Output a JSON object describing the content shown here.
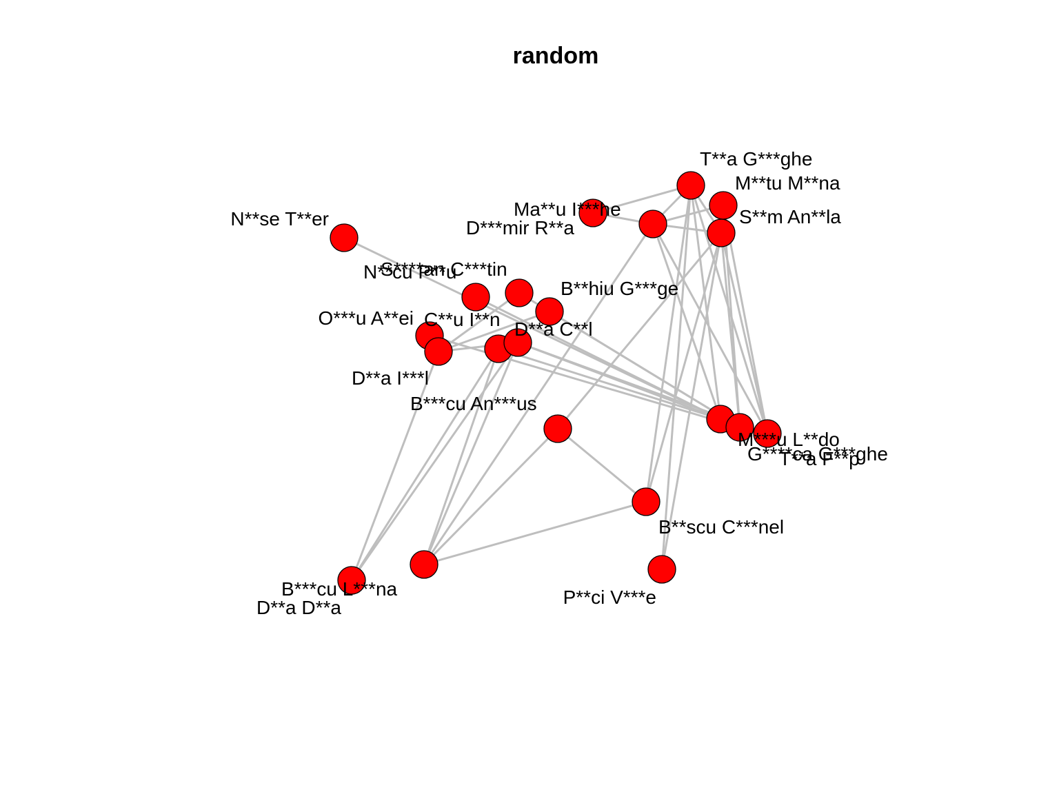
{
  "title": "random",
  "colors": {
    "node_fill": "#ff0000",
    "node_stroke": "#000000",
    "edge": "#bebebe"
  },
  "nodes": [
    {
      "id": "tga",
      "label": "T**a G***ghe"
    },
    {
      "id": "mmn",
      "label": "M**tu M**na"
    },
    {
      "id": "mih",
      "label": "Ma**u I***he"
    },
    {
      "id": "dmr",
      "label": "D***mir R**a"
    },
    {
      "id": "sam",
      "label": "S**m An**la"
    },
    {
      "id": "nte",
      "label": "N**se T**er"
    },
    {
      "id": "scs",
      "label": "S****an C***tin"
    },
    {
      "id": "npu",
      "label": "N**cu P**u"
    },
    {
      "id": "bhg",
      "label": "B**hiu G***ge"
    },
    {
      "id": "oae",
      "label": "O***u A**ei"
    },
    {
      "id": "cin",
      "label": "C**u I**n"
    },
    {
      "id": "dcl",
      "label": "D**a C**l"
    },
    {
      "id": "dil",
      "label": "D**a I***l"
    },
    {
      "id": "ban",
      "label": "B***cu An***us"
    },
    {
      "id": "mld",
      "label": "M***u L**do"
    },
    {
      "id": "ggh",
      "label": "G****ca G***ghe"
    },
    {
      "id": "tfp",
      "label": "T**a F**p"
    },
    {
      "id": "bcn",
      "label": "B**scu C***nel"
    },
    {
      "id": "bln",
      "label": "B***cu L***na"
    },
    {
      "id": "dda",
      "label": "D**a D**a"
    },
    {
      "id": "pvi",
      "label": "P**ci V***e"
    }
  ],
  "edges": [
    [
      "mih",
      "tga"
    ],
    [
      "mih",
      "dmr"
    ],
    [
      "dmr",
      "tga"
    ],
    [
      "dmr",
      "mmn"
    ],
    [
      "dmr",
      "sam"
    ],
    [
      "tga",
      "sam"
    ],
    [
      "tga",
      "mld"
    ],
    [
      "tga",
      "tfp"
    ],
    [
      "tga",
      "bcn"
    ],
    [
      "tga",
      "pvi"
    ],
    [
      "mmn",
      "ggh"
    ],
    [
      "mmn",
      "tfp"
    ],
    [
      "sam",
      "ggh"
    ],
    [
      "sam",
      "tfp"
    ],
    [
      "sam",
      "bcn"
    ],
    [
      "sam",
      "pvi"
    ],
    [
      "sam",
      "ban"
    ],
    [
      "dmr",
      "mld"
    ],
    [
      "dmr",
      "tfp"
    ],
    [
      "dmr",
      "dda"
    ],
    [
      "nte",
      "mld"
    ],
    [
      "npu",
      "mld"
    ],
    [
      "scs",
      "ggh"
    ],
    [
      "bhg",
      "ggh"
    ],
    [
      "cin",
      "mld"
    ],
    [
      "dcl",
      "mld"
    ],
    [
      "dcl",
      "tfp"
    ],
    [
      "oae",
      "ggh"
    ],
    [
      "dil",
      "dcl"
    ],
    [
      "dil",
      "scs"
    ],
    [
      "dil",
      "bhg"
    ],
    [
      "dil",
      "bln"
    ],
    [
      "oae",
      "dil"
    ],
    [
      "cin",
      "bln"
    ],
    [
      "cin",
      "dda"
    ],
    [
      "dcl",
      "dda"
    ],
    [
      "dcl",
      "bln"
    ],
    [
      "ban",
      "dda"
    ],
    [
      "ban",
      "bcn"
    ],
    [
      "bcn",
      "dda"
    ]
  ]
}
